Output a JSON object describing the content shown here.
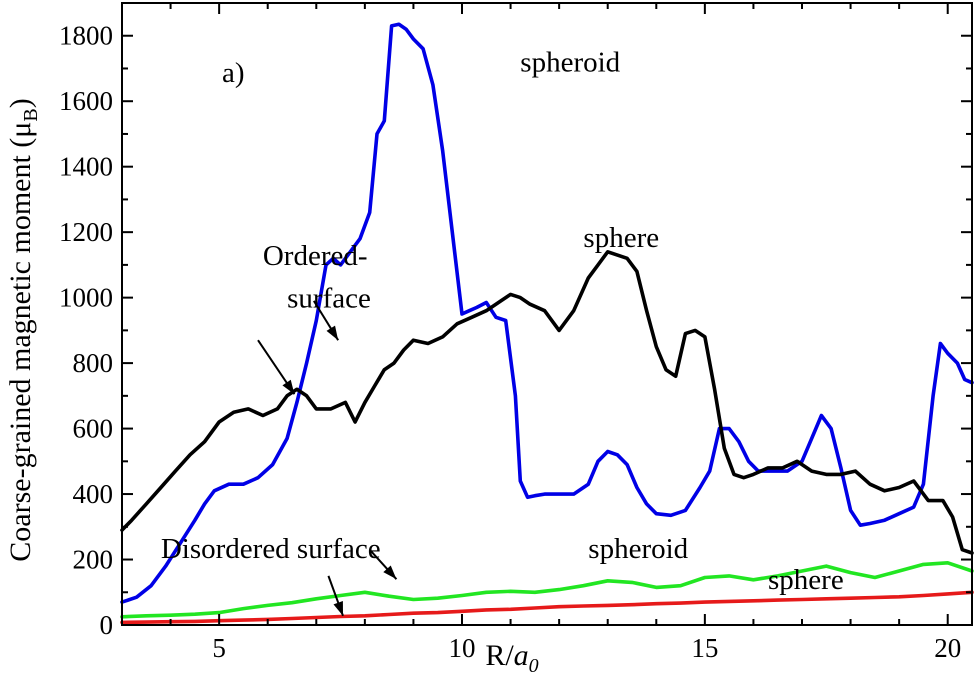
{
  "chart_data": {
    "type": "line",
    "panel_label": "a)",
    "xlabel_main": "R/",
    "xlabel_italic": "a",
    "xlabel_sub": "0",
    "ylabel_main": "Coarse-grained magnetic moment (μ",
    "ylabel_sub": "B",
    "ylabel_close": ")",
    "xlim": [
      3.0,
      20.5
    ],
    "ylim": [
      0,
      1900
    ],
    "x_ticks": [
      5,
      10,
      15,
      20
    ],
    "x_tick_labels": [
      "5",
      "10",
      "15",
      "20"
    ],
    "y_ticks": [
      0,
      200,
      400,
      600,
      800,
      1000,
      1200,
      1400,
      1600,
      1800
    ],
    "y_tick_labels": [
      "0",
      "200",
      "400",
      "600",
      "800",
      "1000",
      "1200",
      "1400",
      "1600",
      "1800"
    ],
    "grid": false,
    "series": [
      {
        "name": "spheroid",
        "color": "#0000e6",
        "x": [
          3.0,
          3.3,
          3.6,
          3.9,
          4.2,
          4.5,
          4.7,
          4.9,
          5.2,
          5.5,
          5.8,
          6.1,
          6.4,
          6.6,
          6.8,
          7.0,
          7.2,
          7.35,
          7.5,
          7.7,
          7.9,
          8.1,
          8.25,
          8.4,
          8.55,
          8.7,
          8.85,
          9.0,
          9.2,
          9.4,
          9.6,
          9.8,
          10.0,
          10.15,
          10.3,
          10.5,
          10.7,
          10.9,
          11.1,
          11.2,
          11.35,
          11.5,
          11.7,
          12.0,
          12.3,
          12.6,
          12.8,
          13.0,
          13.2,
          13.4,
          13.6,
          13.8,
          14.0,
          14.3,
          14.6,
          14.9,
          15.1,
          15.3,
          15.5,
          15.7,
          15.9,
          16.1,
          16.4,
          16.7,
          17.0,
          17.2,
          17.4,
          17.6,
          17.8,
          18.0,
          18.2,
          18.4,
          18.7,
          19.0,
          19.3,
          19.5,
          19.7,
          19.85,
          20.0,
          20.2,
          20.35,
          20.5
        ],
        "values": [
          70,
          85,
          120,
          180,
          250,
          320,
          370,
          410,
          430,
          430,
          450,
          490,
          570,
          680,
          800,
          930,
          1100,
          1120,
          1100,
          1140,
          1180,
          1260,
          1500,
          1540,
          1830,
          1835,
          1820,
          1790,
          1760,
          1650,
          1450,
          1200,
          950,
          960,
          970,
          985,
          940,
          930,
          700,
          440,
          390,
          395,
          400,
          400,
          400,
          430,
          500,
          530,
          520,
          490,
          420,
          370,
          340,
          335,
          350,
          420,
          470,
          600,
          600,
          560,
          500,
          470,
          470,
          470,
          500,
          570,
          640,
          600,
          480,
          350,
          305,
          310,
          320,
          340,
          360,
          430,
          700,
          860,
          830,
          800,
          750,
          740
        ]
      },
      {
        "name": "sphere",
        "color": "#000000",
        "x": [
          3.0,
          3.2,
          3.5,
          3.8,
          4.1,
          4.4,
          4.7,
          5.0,
          5.3,
          5.6,
          5.9,
          6.2,
          6.4,
          6.6,
          6.8,
          7.0,
          7.3,
          7.6,
          7.8,
          8.0,
          8.2,
          8.4,
          8.6,
          8.8,
          9.0,
          9.3,
          9.6,
          9.9,
          10.2,
          10.5,
          10.8,
          11.0,
          11.2,
          11.4,
          11.7,
          12.0,
          12.3,
          12.6,
          12.8,
          13.0,
          13.2,
          13.4,
          13.6,
          13.8,
          14.0,
          14.2,
          14.4,
          14.6,
          14.8,
          15.0,
          15.2,
          15.4,
          15.6,
          15.8,
          16.0,
          16.3,
          16.6,
          16.9,
          17.2,
          17.5,
          17.8,
          18.1,
          18.4,
          18.7,
          19.0,
          19.3,
          19.6,
          19.9,
          20.1,
          20.3,
          20.5
        ],
        "values": [
          290,
          320,
          370,
          420,
          470,
          520,
          560,
          620,
          650,
          660,
          640,
          660,
          700,
          720,
          700,
          660,
          660,
          680,
          620,
          680,
          730,
          780,
          800,
          840,
          870,
          860,
          880,
          920,
          940,
          960,
          990,
          1010,
          1000,
          980,
          960,
          900,
          960,
          1060,
          1100,
          1140,
          1130,
          1120,
          1080,
          960,
          850,
          780,
          760,
          890,
          900,
          880,
          720,
          540,
          460,
          450,
          460,
          480,
          480,
          500,
          470,
          460,
          460,
          470,
          430,
          410,
          420,
          440,
          380,
          380,
          330,
          230,
          220
        ]
      },
      {
        "name": "spheroid",
        "color": "#22e622",
        "x": [
          3.0,
          3.5,
          4.0,
          4.5,
          5.0,
          5.5,
          6.0,
          6.5,
          7.0,
          7.5,
          8.0,
          8.5,
          9.0,
          9.5,
          10.0,
          10.5,
          11.0,
          11.5,
          12.0,
          12.5,
          13.0,
          13.5,
          14.0,
          14.5,
          15.0,
          15.5,
          16.0,
          16.5,
          17.0,
          17.5,
          18.0,
          18.5,
          19.0,
          19.5,
          20.0,
          20.5
        ],
        "values": [
          25,
          28,
          30,
          33,
          38,
          50,
          60,
          68,
          80,
          90,
          100,
          88,
          78,
          82,
          90,
          100,
          103,
          100,
          108,
          120,
          135,
          130,
          115,
          120,
          145,
          150,
          138,
          150,
          165,
          180,
          160,
          145,
          165,
          185,
          190,
          165
        ]
      },
      {
        "name": "sphere",
        "color": "#e61a1a",
        "x": [
          3.0,
          3.5,
          4.0,
          4.5,
          5.0,
          5.5,
          6.0,
          6.5,
          7.0,
          7.5,
          8.0,
          8.5,
          9.0,
          9.5,
          10.0,
          10.5,
          11.0,
          11.5,
          12.0,
          12.5,
          13.0,
          13.5,
          14.0,
          14.5,
          15.0,
          15.5,
          16.0,
          16.5,
          17.0,
          17.5,
          18.0,
          18.5,
          19.0,
          19.5,
          20.0,
          20.5
        ],
        "values": [
          8,
          9,
          10,
          11,
          13,
          15,
          17,
          20,
          23,
          26,
          28,
          32,
          36,
          38,
          42,
          46,
          48,
          52,
          56,
          58,
          60,
          62,
          65,
          67,
          70,
          72,
          74,
          76,
          78,
          80,
          82,
          84,
          86,
          90,
          95,
          100
        ]
      }
    ],
    "annotations": [
      {
        "text": "spheroid",
        "x": 11.2,
        "y": 1690
      },
      {
        "text": "sphere",
        "x": 12.5,
        "y": 1155
      },
      {
        "text": "Ordered-",
        "x": 5.9,
        "y": 1100
      },
      {
        "text": "surface",
        "x": 6.4,
        "y": 970
      },
      {
        "text": "Disordered surface",
        "x": 3.8,
        "y": 205
      },
      {
        "text": "spheroid",
        "x": 12.6,
        "y": 205
      },
      {
        "text": "sphere",
        "x": 16.3,
        "y": 110
      }
    ],
    "arrows": [
      {
        "from": [
          6.95,
          990
        ],
        "to": [
          7.45,
          870
        ]
      },
      {
        "from": [
          5.8,
          870
        ],
        "to": [
          6.55,
          705
        ]
      },
      {
        "from": [
          8.1,
          230
        ],
        "to": [
          8.65,
          140
        ]
      },
      {
        "from": [
          7.25,
          150
        ],
        "to": [
          7.55,
          28
        ]
      }
    ]
  }
}
